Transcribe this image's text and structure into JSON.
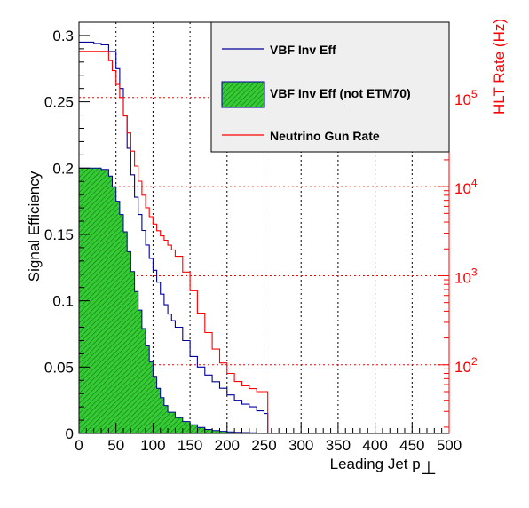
{
  "chart_data": {
    "type": "line",
    "x_axis": {
      "label": "Leading Jet p",
      "label_subscript": "⊥",
      "range": [
        0,
        500
      ],
      "ticks": [
        0,
        50,
        100,
        150,
        200,
        250,
        300,
        350,
        400,
        450,
        500
      ],
      "tick_labels": [
        "0",
        "50",
        "100",
        "150",
        "200",
        "250",
        "300",
        "350",
        "400",
        "450",
        "500"
      ]
    },
    "y_axis_left": {
      "label": "Signal Efficiency",
      "range": [
        0,
        0.31
      ],
      "ticks": [
        0,
        0.05,
        0.1,
        0.15,
        0.2,
        0.25,
        0.3
      ],
      "tick_labels": [
        "0",
        "0.05",
        "0.1",
        "0.15",
        "0.2",
        "0.25",
        "0.3"
      ]
    },
    "y_axis_right": {
      "label": "HLT Rate (Hz)",
      "scale": "log",
      "range": [
        17,
        700000
      ],
      "ticks": [
        100,
        1000,
        10000,
        100000
      ],
      "tick_labels": [
        {
          "base": "10",
          "exp": "2"
        },
        {
          "base": "10",
          "exp": "3"
        },
        {
          "base": "10",
          "exp": "4"
        },
        {
          "base": "10",
          "exp": "5"
        }
      ],
      "color": "#ff0000"
    },
    "grid": true,
    "legend_position": "top-right",
    "series": [
      {
        "name": "VBF Inv Eff",
        "axis": "left",
        "color": "#000099",
        "x": [
          0,
          20,
          30,
          40,
          50,
          55,
          60,
          65,
          70,
          75,
          80,
          85,
          90,
          95,
          100,
          105,
          110,
          115,
          120,
          125,
          130,
          140,
          150,
          160,
          170,
          180,
          190,
          200,
          210,
          220,
          230,
          240,
          250
        ],
        "y": [
          0.295,
          0.294,
          0.293,
          0.288,
          0.275,
          0.26,
          0.24,
          0.215,
          0.195,
          0.178,
          0.165,
          0.153,
          0.142,
          0.132,
          0.123,
          0.114,
          0.105,
          0.097,
          0.09,
          0.085,
          0.08,
          0.07,
          0.058,
          0.05,
          0.044,
          0.039,
          0.034,
          0.029,
          0.025,
          0.022,
          0.02,
          0.017,
          0.015
        ]
      },
      {
        "name": "VBF Inv Eff (not ETM70)",
        "axis": "left",
        "color": "#000099",
        "fill": "#33cc33",
        "x": [
          0,
          20,
          30,
          40,
          45,
          50,
          55,
          60,
          65,
          70,
          75,
          80,
          85,
          90,
          95,
          100,
          105,
          110,
          115,
          120,
          130,
          140,
          150,
          160,
          170,
          180,
          190,
          200,
          210,
          220,
          230,
          240,
          250
        ],
        "y": [
          0.2,
          0.2,
          0.199,
          0.194,
          0.186,
          0.175,
          0.165,
          0.152,
          0.137,
          0.122,
          0.107,
          0.093,
          0.079,
          0.066,
          0.054,
          0.043,
          0.034,
          0.027,
          0.021,
          0.016,
          0.012,
          0.009,
          0.0065,
          0.0045,
          0.003,
          0.0022,
          0.0016,
          0.0012,
          0.0009,
          0.0007,
          0.0005,
          0.0003,
          0.0002
        ]
      },
      {
        "name": "Neutrino Gun Rate",
        "axis": "right",
        "color": "#ff0000",
        "x": [
          0,
          30,
          40,
          45,
          50,
          55,
          60,
          65,
          70,
          75,
          80,
          85,
          90,
          95,
          100,
          105,
          110,
          115,
          120,
          125,
          130,
          140,
          150,
          160,
          170,
          180,
          190,
          200,
          210,
          220,
          230,
          240,
          250
        ],
        "y": [
          330000,
          330000,
          260000,
          200000,
          140000,
          100000,
          62000,
          40000,
          25000,
          17000,
          11500,
          8000,
          5800,
          4600,
          3800,
          3200,
          2800,
          2500,
          2200,
          1950,
          1650,
          1100,
          680,
          380,
          230,
          150,
          105,
          80,
          65,
          58,
          54,
          50,
          50
        ]
      }
    ]
  }
}
